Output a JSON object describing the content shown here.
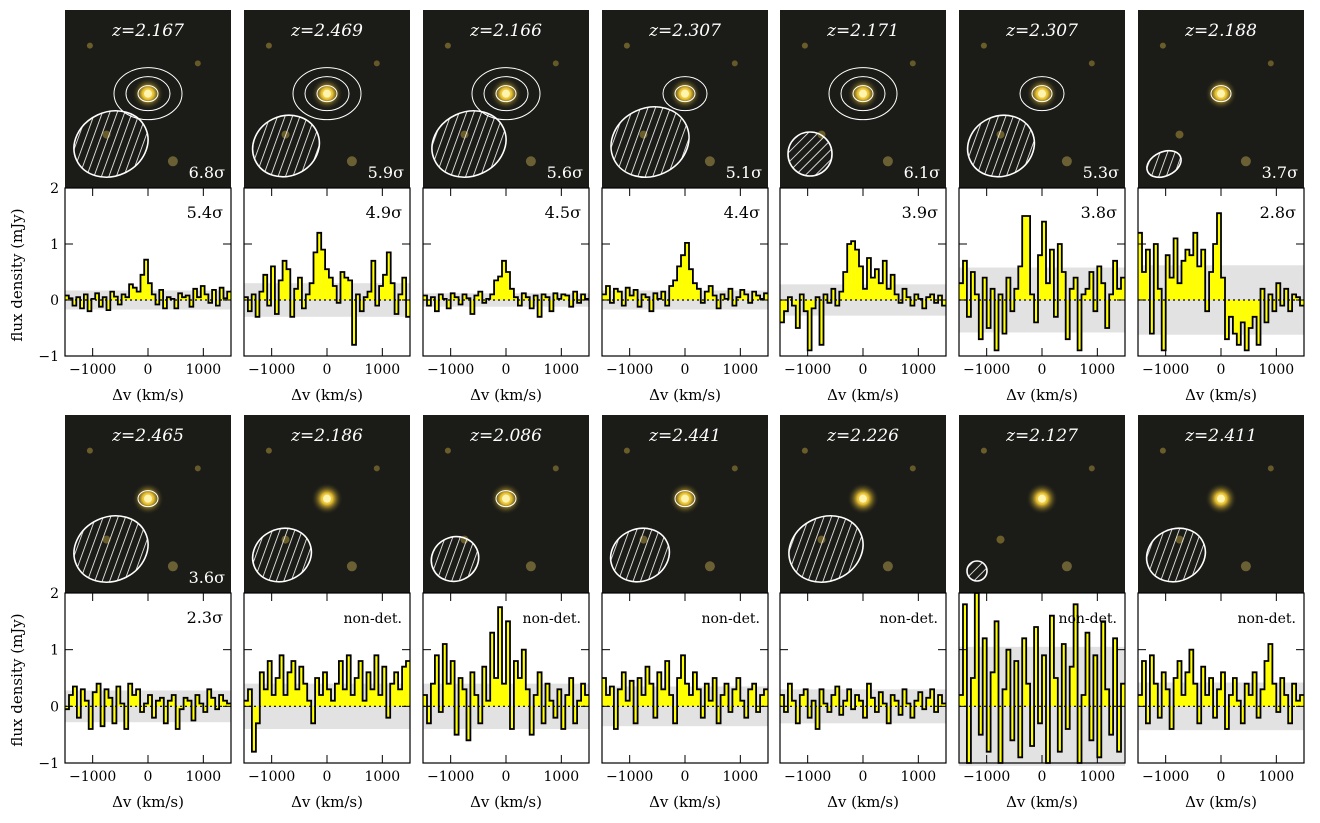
{
  "figure": {
    "ylabel": "flux density (mJy)",
    "xlabel": "Δv (km/s)",
    "y_ticks": [
      "2",
      "1",
      "0",
      "−1"
    ],
    "x_ticks": [
      "−1000",
      "0",
      "1000"
    ],
    "ylim": [
      -1,
      2
    ],
    "xlim": [
      -1500,
      1500
    ]
  },
  "colors": {
    "fill": "#ffff00",
    "band": "#e2e2e2",
    "stroke": "#000000",
    "image_bg": "#1b1c18",
    "contour": "#ffffff"
  },
  "chart_data": {
    "type": "step",
    "panels": [
      {
        "id": "13296",
        "z": "z=2.167",
        "img_sig": "6.8σ",
        "spec_sig": "5.4σ",
        "band": 0.17,
        "contours": 3,
        "beam": [
          38,
          32,
          -25
        ],
        "values": [
          0.08,
          0.03,
          -0.1,
          0.05,
          -0.15,
          0.1,
          -0.2,
          0.02,
          0.12,
          -0.12,
          0.05,
          -0.18,
          0.15,
          0.06,
          -0.08,
          0.1,
          0.05,
          0.28,
          0.22,
          0.15,
          0.45,
          0.72,
          0.3,
          0.1,
          -0.08,
          0.18,
          -0.15,
          0.05,
          0.02,
          -0.15,
          0.12,
          0.05,
          0.08,
          -0.12,
          0.2,
          0.05,
          0.25,
          0.1,
          -0.05,
          0.18,
          -0.1,
          0.22,
          0.03,
          0.15
        ]
      },
      {
        "id": "19753",
        "z": "z=2.469",
        "img_sig": "5.9σ",
        "spec_sig": "4.9σ",
        "band": 0.3,
        "contours": 3,
        "beam": [
          34,
          30,
          -25
        ],
        "values": [
          0.05,
          -0.2,
          0.1,
          -0.3,
          0.15,
          0.45,
          -0.1,
          0.6,
          -0.25,
          0.35,
          0.7,
          0.55,
          -0.3,
          0.2,
          0.4,
          -0.15,
          0.1,
          0.3,
          0.85,
          1.2,
          0.9,
          0.55,
          0.4,
          0.25,
          -0.05,
          0.5,
          0.4,
          0.35,
          -0.8,
          0.1,
          -0.2,
          0.05,
          0.15,
          0.7,
          -0.1,
          0.25,
          0.45,
          0.85,
          0.3,
          -0.25,
          0.1,
          0.4,
          -0.3
        ]
      },
      {
        "id": "13701",
        "z": "z=2.166",
        "img_sig": "5.6σ",
        "spec_sig": "4.5σ",
        "band": 0.12,
        "contours": 3,
        "beam": [
          38,
          32,
          -25
        ],
        "values": [
          0.08,
          -0.1,
          0.05,
          -0.2,
          0.1,
          0.02,
          -0.15,
          0.12,
          0.05,
          -0.08,
          0.1,
          0.03,
          -0.25,
          0.08,
          0.15,
          -0.05,
          0.02,
          0.1,
          0.35,
          0.42,
          0.7,
          0.5,
          0.2,
          0.05,
          -0.1,
          0.12,
          0.05,
          -0.15,
          0.08,
          -0.3,
          0.1,
          0.05,
          -0.2,
          0.12,
          0.02,
          0.1,
          0.08,
          -0.12,
          0.15,
          -0.05,
          0.1,
          0.02
        ]
      },
      {
        "id": "2672",
        "z": "z=2.307",
        "img_sig": "5.1σ",
        "spec_sig": "4.4σ",
        "band": 0.17,
        "contours": 2,
        "beam": [
          40,
          34,
          -25
        ],
        "values": [
          0.1,
          0.25,
          -0.05,
          0.2,
          0.15,
          -0.1,
          0.22,
          0.08,
          0.18,
          -0.12,
          0.1,
          0.05,
          -0.2,
          0.12,
          0.02,
          0.15,
          -0.1,
          0.25,
          0.35,
          0.6,
          0.8,
          1.02,
          0.55,
          0.3,
          0.2,
          -0.05,
          0.15,
          0.25,
          0.08,
          -0.15,
          0.1,
          0.02,
          0.2,
          -0.1,
          0.05,
          0.18,
          0.1,
          -0.05,
          0.15,
          0.08,
          0.02,
          0.12
        ]
      },
      {
        "id": "5094",
        "z": "z=2.171",
        "img_sig": "6.1σ",
        "spec_sig": "3.9σ",
        "band": 0.28,
        "contours": 3,
        "beam": [
          22,
          22,
          0
        ],
        "values": [
          -0.4,
          -0.2,
          0.05,
          -0.1,
          -0.5,
          0.1,
          -0.2,
          -0.9,
          -0.15,
          0.05,
          -0.8,
          0.1,
          -0.05,
          0.2,
          -0.1,
          0.15,
          0.5,
          1.0,
          1.05,
          0.9,
          0.6,
          0.2,
          0.75,
          0.4,
          0.55,
          0.3,
          0.7,
          0.2,
          0.45,
          0.1,
          -0.05,
          0.2,
          0.05,
          -0.1,
          0.1,
          0.02,
          -0.15,
          0.05,
          0.1,
          -0.05,
          0.08,
          -0.1
        ]
      },
      {
        "id": "3324",
        "z": "z=2.307",
        "img_sig": "5.3σ",
        "spec_sig": "3.8σ",
        "band": 0.58,
        "contours": 2,
        "beam": [
          34,
          30,
          -25
        ],
        "values": [
          0.3,
          0.7,
          -0.3,
          0.5,
          0.1,
          -0.7,
          0.4,
          -0.5,
          0.2,
          -0.9,
          0.1,
          -0.6,
          0.4,
          -0.2,
          0.2,
          0.6,
          1.5,
          1.5,
          0.1,
          -0.4,
          0.8,
          1.4,
          0.3,
          0.9,
          -0.3,
          1.0,
          0.5,
          -0.7,
          0.2,
          0.4,
          -0.9,
          0.1,
          0.2,
          0.5,
          -0.2,
          0.6,
          0.3,
          -0.5,
          0.1,
          0.7,
          0.2,
          0.4
        ]
      },
      {
        "id": "19985",
        "z": "z=2.188",
        "img_sig": "3.7σ",
        "spec_sig": "2.8σ",
        "band": 0.62,
        "contours": 1,
        "beam": [
          18,
          12,
          -25
        ],
        "values": [
          1.2,
          0.5,
          0.9,
          -0.6,
          1.0,
          0.2,
          -0.9,
          0.8,
          0.4,
          1.1,
          0.3,
          0.7,
          0.9,
          0.8,
          1.2,
          0.6,
          0.9,
          -0.2,
          0.5,
          1.0,
          1.55,
          0.4,
          -0.7,
          -0.3,
          -0.6,
          -0.8,
          -0.4,
          -0.9,
          -0.5,
          -0.3,
          -0.8,
          0.2,
          -0.4,
          0.1,
          -0.2,
          0.3,
          -0.1,
          0.2,
          -0.2,
          0.1,
          0.05,
          -0.1
        ]
      },
      {
        "id": "24763",
        "z": "z=2.465",
        "img_sig": "3.6σ",
        "spec_sig": "2.3σ",
        "band": 0.28,
        "contours": 1,
        "beam": [
          38,
          32,
          -25
        ],
        "values": [
          -0.05,
          0.2,
          0.35,
          -0.2,
          0.3,
          0.1,
          -0.4,
          0.25,
          0.4,
          -0.35,
          0.3,
          0.15,
          -0.3,
          0.35,
          0.05,
          -0.4,
          0.4,
          0.2,
          0.3,
          -0.1,
          0.05,
          0.2,
          -0.2,
          0.1,
          0.15,
          -0.3,
          0.1,
          0.2,
          -0.4,
          -0.05,
          0.15,
          0.1,
          -0.25,
          0.2,
          0.05,
          -0.1,
          0.3,
          0.15,
          -0.05,
          0.2,
          0.1,
          0.05
        ]
      },
      {
        "id": "20062",
        "z": "z=2.186",
        "img_sig": "",
        "spec_sig": "non-det.",
        "band": 0.4,
        "contours": 0,
        "beam": [
          30,
          26,
          -25
        ],
        "values": [
          0.1,
          0.3,
          -0.8,
          -0.3,
          0.6,
          0.3,
          0.8,
          0.2,
          0.5,
          0.9,
          0.2,
          0.6,
          0.8,
          0.3,
          0.7,
          0.4,
          0.1,
          -0.3,
          0.5,
          0.2,
          0.6,
          0.3,
          0.1,
          0.4,
          0.8,
          0.3,
          0.9,
          0.2,
          0.5,
          0.8,
          0.1,
          0.6,
          0.3,
          0.9,
          0.2,
          0.7,
          -0.2,
          0.4,
          0.6,
          0.3,
          0.7,
          0.8
        ]
      },
      {
        "id": "3666",
        "z": "z=2.086",
        "img_sig": "",
        "spec_sig": "non-det.",
        "band": 0.4,
        "contours": 1,
        "beam": [
          24,
          22,
          -25
        ],
        "values": [
          0.2,
          -0.3,
          0.4,
          0.9,
          -0.1,
          1.1,
          0.4,
          0.8,
          -0.5,
          0.5,
          0.3,
          -0.6,
          0.6,
          0.2,
          -0.3,
          0.7,
          0.1,
          1.3,
          0.5,
          1.75,
          0.4,
          1.5,
          -0.4,
          0.8,
          0.5,
          1.0,
          0.3,
          -0.5,
          0.2,
          0.6,
          -0.3,
          0.4,
          0.1,
          -0.2,
          0.3,
          -0.4,
          0.2,
          0.5,
          -0.3,
          0.1,
          0.4,
          0.2
        ]
      },
      {
        "id": "4497",
        "z": "z=2.441",
        "img_sig": "",
        "spec_sig": "non-det.",
        "band": 0.35,
        "contours": 1,
        "beam": [
          30,
          26,
          -25
        ],
        "values": [
          0.5,
          0.2,
          0.35,
          -0.4,
          0.3,
          0.6,
          0.1,
          0.45,
          -0.3,
          0.5,
          0.2,
          0.7,
          0.4,
          -0.2,
          0.6,
          0.3,
          0.8,
          0.2,
          -0.3,
          0.5,
          0.9,
          0.4,
          0.2,
          0.6,
          0.3,
          -0.2,
          0.4,
          0.1,
          0.5,
          -0.3,
          0.2,
          0.4,
          -0.1,
          0.3,
          0.5,
          0.1,
          -0.2,
          0.3,
          0.4,
          -0.1,
          0.2,
          0.3
        ]
      },
      {
        "id": "4930",
        "z": "z=2.226",
        "img_sig": "",
        "spec_sig": "non-det.",
        "band": 0.3,
        "contours": 0,
        "beam": [
          38,
          32,
          -25
        ],
        "values": [
          0.2,
          -0.1,
          0.4,
          0.1,
          -0.3,
          0.2,
          0.3,
          -0.2,
          0.1,
          -0.4,
          0.3,
          0.05,
          -0.1,
          0.2,
          0.35,
          -0.15,
          0.1,
          0.3,
          -0.05,
          0.2,
          0.1,
          -0.2,
          0.4,
          0.15,
          -0.1,
          0.25,
          0.05,
          -0.3,
          0.2,
          0.1,
          -0.15,
          0.3,
          0.05,
          -0.2,
          0.1,
          0.25,
          -0.05,
          0.15,
          0.3,
          -0.1,
          0.2,
          0.05
        ]
      },
      {
        "id": "5814",
        "z": "z=2.127",
        "img_sig": "",
        "spec_sig": "non-det.",
        "band": 1.05,
        "contours": 0,
        "beam": [
          10,
          10,
          0
        ],
        "values": [
          0.2,
          1.8,
          -1.0,
          0.5,
          2.0,
          -0.5,
          1.2,
          -0.8,
          0.6,
          1.5,
          -1.0,
          0.3,
          1.0,
          -0.6,
          0.8,
          -0.9,
          1.2,
          0.4,
          -0.7,
          1.4,
          -0.3,
          0.9,
          -1.0,
          1.6,
          0.5,
          -0.8,
          1.1,
          -0.4,
          0.7,
          1.8,
          -1.0,
          0.2,
          1.3,
          -0.6,
          0.9,
          -0.9,
          1.5,
          0.3,
          -0.5,
          1.2,
          -0.8,
          0.4
        ]
      },
      {
        "id": "9971",
        "z": "z=2.411",
        "img_sig": "",
        "spec_sig": "non-det.",
        "band": 0.42,
        "contours": 0,
        "beam": [
          30,
          26,
          -25
        ],
        "values": [
          0.2,
          0.8,
          -0.3,
          0.9,
          0.4,
          -0.2,
          0.6,
          0.3,
          -0.4,
          0.5,
          0.8,
          0.2,
          0.6,
          1.0,
          0.4,
          -0.3,
          0.7,
          0.2,
          0.5,
          -0.2,
          0.3,
          0.6,
          -0.4,
          0.2,
          0.5,
          0.1,
          -0.3,
          0.4,
          0.2,
          0.6,
          -0.2,
          0.3,
          0.8,
          1.1,
          0.4,
          -0.1,
          0.5,
          0.2,
          -0.3,
          0.4,
          0.1,
          0.2
        ]
      }
    ]
  }
}
